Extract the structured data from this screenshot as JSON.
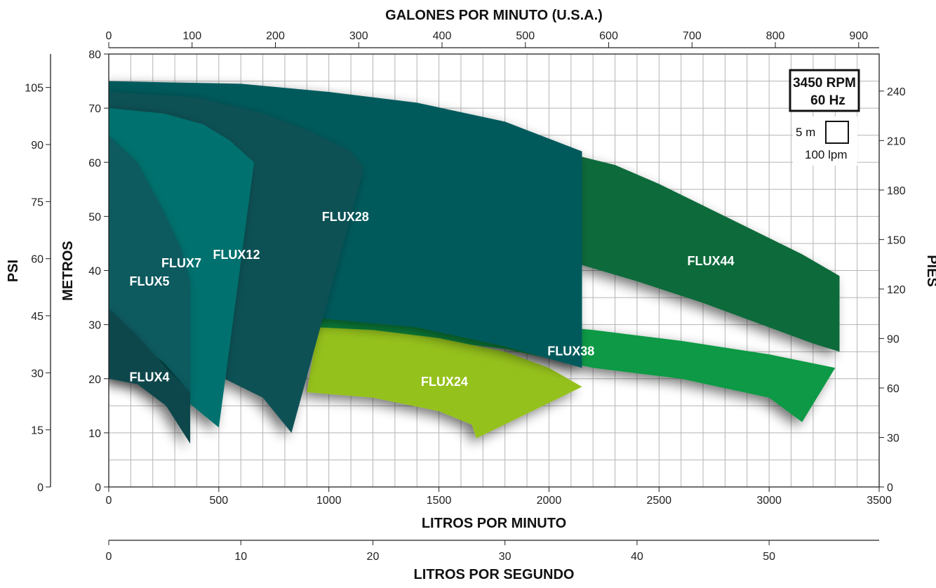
{
  "chart_data": {
    "type": "area",
    "title": "",
    "top_axis": {
      "label": "GALONES POR MINUTO (U.S.A.)",
      "ticks": [
        0,
        100,
        200,
        300,
        400,
        500,
        600,
        700,
        800,
        900
      ],
      "unit": "gpm"
    },
    "bottom_axis": {
      "label": "LITROS POR MINUTO",
      "ticks": [
        0,
        500,
        1000,
        1500,
        2000,
        2500,
        3000,
        3500
      ],
      "range": [
        0,
        3500
      ]
    },
    "secondary_bottom_axis": {
      "label": "LITROS POR SEGUNDO",
      "ticks": [
        0,
        10,
        20,
        30,
        40,
        50
      ]
    },
    "left_axis": {
      "label": "METROS",
      "ticks": [
        0,
        10,
        20,
        30,
        40,
        50,
        60,
        70,
        80
      ],
      "range": [
        0,
        80
      ]
    },
    "outer_left_axis": {
      "label": "PSI",
      "ticks": [
        0,
        15,
        30,
        45,
        60,
        75,
        90,
        105
      ]
    },
    "right_axis": {
      "label": "PIES",
      "ticks": [
        0,
        30,
        60,
        90,
        120,
        150,
        180,
        210,
        240
      ]
    },
    "speed_badge": {
      "line1": "3450 RPM",
      "line2": "60 Hz"
    },
    "grid_scale": {
      "height_label": "5 m",
      "flow_label": "100 lpm"
    },
    "grid": true,
    "series": [
      {
        "name": "FLUX44",
        "color": "#0b6b3a",
        "upper": [
          [
            2150,
            61
          ],
          [
            2300,
            59.5
          ],
          [
            2500,
            56
          ],
          [
            2700,
            52
          ],
          [
            2900,
            48
          ],
          [
            3150,
            43
          ],
          [
            3320,
            39
          ]
        ],
        "lower": [
          [
            2150,
            41
          ],
          [
            2400,
            38
          ],
          [
            2700,
            34
          ],
          [
            3000,
            29.5
          ],
          [
            3200,
            26.5
          ],
          [
            3320,
            25
          ]
        ]
      },
      {
        "name": "FLUX38",
        "color": "#0a9944",
        "upper": [
          [
            900,
            33
          ],
          [
            1300,
            32
          ],
          [
            1800,
            30.5
          ],
          [
            2200,
            29
          ],
          [
            2600,
            27
          ],
          [
            3000,
            24.5
          ],
          [
            3300,
            22
          ]
        ],
        "lower": [
          [
            900,
            29
          ],
          [
            1300,
            28
          ],
          [
            1800,
            25.5
          ],
          [
            2200,
            22
          ],
          [
            2600,
            20
          ],
          [
            3000,
            16.5
          ],
          [
            3150,
            12
          ]
        ]
      },
      {
        "name": "FLUX24",
        "color": "#95c11f",
        "upper": [
          [
            950,
            29.5
          ],
          [
            1200,
            29
          ],
          [
            1500,
            27.5
          ],
          [
            1800,
            25
          ],
          [
            2000,
            22
          ],
          [
            2150,
            18.5
          ]
        ],
        "lower": [
          [
            900,
            17.5
          ],
          [
            1200,
            16.5
          ],
          [
            1500,
            14
          ],
          [
            1650,
            11.5
          ],
          [
            1670,
            9
          ]
        ]
      },
      {
        "name": "FLUX28",
        "color": "#005a5c",
        "upper": [
          [
            0,
            75
          ],
          [
            600,
            74.5
          ],
          [
            1000,
            73
          ],
          [
            1400,
            71
          ],
          [
            1800,
            67.5
          ],
          [
            2150,
            62
          ]
        ],
        "lower": [
          [
            0,
            35
          ],
          [
            600,
            32.5
          ],
          [
            1000,
            31
          ],
          [
            1400,
            29.5
          ],
          [
            1800,
            26
          ],
          [
            2150,
            22
          ]
        ]
      },
      {
        "name": "FLUX12",
        "color": "#0b5154",
        "upper": [
          [
            0,
            73
          ],
          [
            400,
            72
          ],
          [
            700,
            69
          ],
          [
            900,
            66
          ],
          [
            1100,
            62
          ],
          [
            1160,
            59
          ]
        ],
        "lower": [
          [
            0,
            25
          ],
          [
            300,
            23
          ],
          [
            500,
            20.5
          ],
          [
            700,
            16.5
          ],
          [
            830,
            10
          ]
        ]
      },
      {
        "name": "FLUX7",
        "color": "#00716e",
        "upper": [
          [
            0,
            70
          ],
          [
            250,
            69
          ],
          [
            430,
            67
          ],
          [
            550,
            64
          ],
          [
            660,
            60
          ]
        ],
        "lower": [
          [
            0,
            21
          ],
          [
            200,
            19
          ],
          [
            350,
            16
          ],
          [
            500,
            11
          ]
        ]
      },
      {
        "name": "FLUX5",
        "color": "#095a5e",
        "upper": [
          [
            0,
            65
          ],
          [
            130,
            60
          ],
          [
            250,
            51
          ],
          [
            330,
            44
          ],
          [
            370,
            38
          ]
        ],
        "lower": [
          [
            0,
            30
          ],
          [
            120,
            27
          ],
          [
            250,
            23
          ],
          [
            370,
            17.5
          ]
        ]
      },
      {
        "name": "FLUX4",
        "color": "#0b474c",
        "upper": [
          [
            0,
            33
          ],
          [
            130,
            28
          ],
          [
            260,
            22
          ],
          [
            370,
            17.5
          ]
        ],
        "lower": [
          [
            0,
            20
          ],
          [
            130,
            19
          ],
          [
            260,
            15
          ],
          [
            370,
            8
          ]
        ]
      }
    ]
  }
}
